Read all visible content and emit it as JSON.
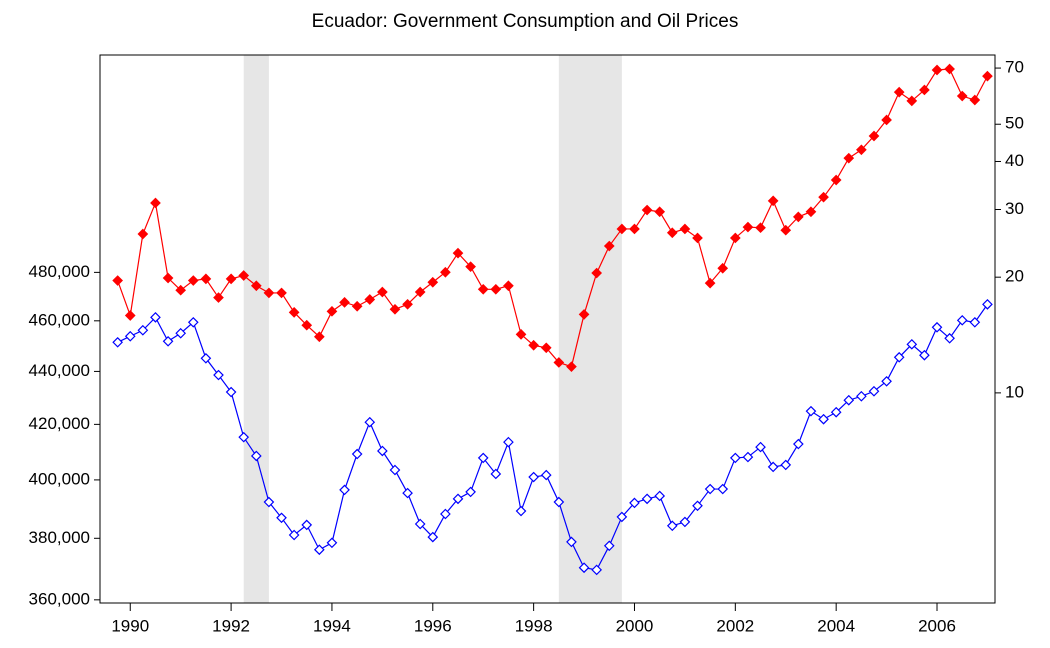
{
  "chart_data": {
    "type": "line",
    "title": "Ecuador: Government Consumption and Oil Prices",
    "x": [
      1989.75,
      1990,
      1990.25,
      1990.5,
      1990.75,
      1991,
      1991.25,
      1991.5,
      1991.75,
      1992,
      1992.25,
      1992.5,
      1992.75,
      1993,
      1993.25,
      1993.5,
      1993.75,
      1994,
      1994.25,
      1994.5,
      1994.75,
      1995,
      1995.25,
      1995.5,
      1995.75,
      1996,
      1996.25,
      1996.5,
      1996.75,
      1997,
      1997.25,
      1997.5,
      1997.75,
      1998,
      1998.25,
      1998.5,
      1998.75,
      1999,
      1999.25,
      1999.5,
      1999.75,
      2000,
      2000.25,
      2000.5,
      2000.75,
      2001,
      2001.25,
      2001.5,
      2001.75,
      2002,
      2002.25,
      2002.5,
      2002.75,
      2003,
      2003.25,
      2003.5,
      2003.75,
      2004,
      2004.25,
      2004.5,
      2004.75,
      2005,
      2005.25,
      2005.5,
      2005.75,
      2006,
      2006.25,
      2006.5,
      2006.75,
      2007
    ],
    "series": [
      {
        "color": "#0000ff",
        "marker": "hollow-diamond",
        "axis": "y",
        "values": [
          451400,
          453800,
          456200,
          461400,
          451800,
          455000,
          459400,
          445100,
          438600,
          432100,
          415300,
          408500,
          392300,
          386900,
          381100,
          384500,
          376200,
          378500,
          396500,
          409200,
          420800,
          410300,
          403500,
          395400,
          384800,
          380400,
          388200,
          393400,
          395800,
          407800,
          402100,
          413500,
          389200,
          401000,
          401700,
          392300,
          378800,
          370300,
          369600,
          377500,
          387200,
          392000,
          393400,
          394400,
          384200,
          385500,
          391000,
          396800,
          396800,
          407800,
          408100,
          411700,
          404600,
          405300,
          412800,
          424900,
          421900,
          424500,
          429000,
          430500,
          432400,
          436200,
          445500,
          450600,
          446300,
          457400,
          453000,
          460200,
          459400,
          466700
        ]
      },
      {
        "color": "#ff0000",
        "marker": "filled-diamond",
        "axis": "y2",
        "values": [
          19.6,
          15.9,
          25.9,
          31.2,
          19.9,
          18.5,
          19.6,
          19.8,
          17.7,
          19.8,
          20.2,
          19.0,
          18.2,
          18.2,
          16.2,
          15.0,
          14.0,
          16.3,
          17.2,
          16.8,
          17.5,
          18.3,
          16.5,
          17.0,
          18.3,
          19.4,
          20.6,
          23.1,
          21.3,
          18.6,
          18.6,
          19.0,
          14.2,
          13.3,
          13.1,
          12.0,
          11.7,
          16.0,
          20.5,
          24.1,
          26.7,
          26.7,
          29.9,
          29.6,
          26.1,
          26.7,
          25.3,
          19.3,
          21.1,
          25.3,
          27.0,
          26.9,
          31.6,
          26.5,
          28.7,
          29.6,
          32.3,
          35.8,
          40.8,
          42.9,
          46.6,
          51.3,
          60.6,
          57.5,
          61.4,
          69.2,
          69.6,
          59.2,
          57.8,
          66.7
        ]
      }
    ],
    "shaded_periods": [
      [
        1992.25,
        1992.75
      ],
      [
        1998.5,
        1999.75
      ]
    ],
    "shade_color": "#e6e6e6",
    "xlim": [
      1989.4,
      2007.15
    ],
    "xticks": [
      1990,
      1992,
      1994,
      1996,
      1998,
      2000,
      2002,
      2004,
      2006
    ],
    "ylim": [
      359000,
      581000
    ],
    "ylog": true,
    "yticks": [
      {
        "value": 360000,
        "label": "360,000"
      },
      {
        "value": 380000,
        "label": "380,000"
      },
      {
        "value": 400000,
        "label": "400,000"
      },
      {
        "value": 420000,
        "label": "420,000"
      },
      {
        "value": 440000,
        "label": "440,000"
      },
      {
        "value": 460000,
        "label": "460,000"
      },
      {
        "value": 480000,
        "label": "480,000"
      }
    ],
    "y2lim": [
      2.84,
      75.7
    ],
    "y2log": true,
    "y2ticks": [
      10,
      20,
      30,
      40,
      50,
      70
    ],
    "grid": false
  }
}
